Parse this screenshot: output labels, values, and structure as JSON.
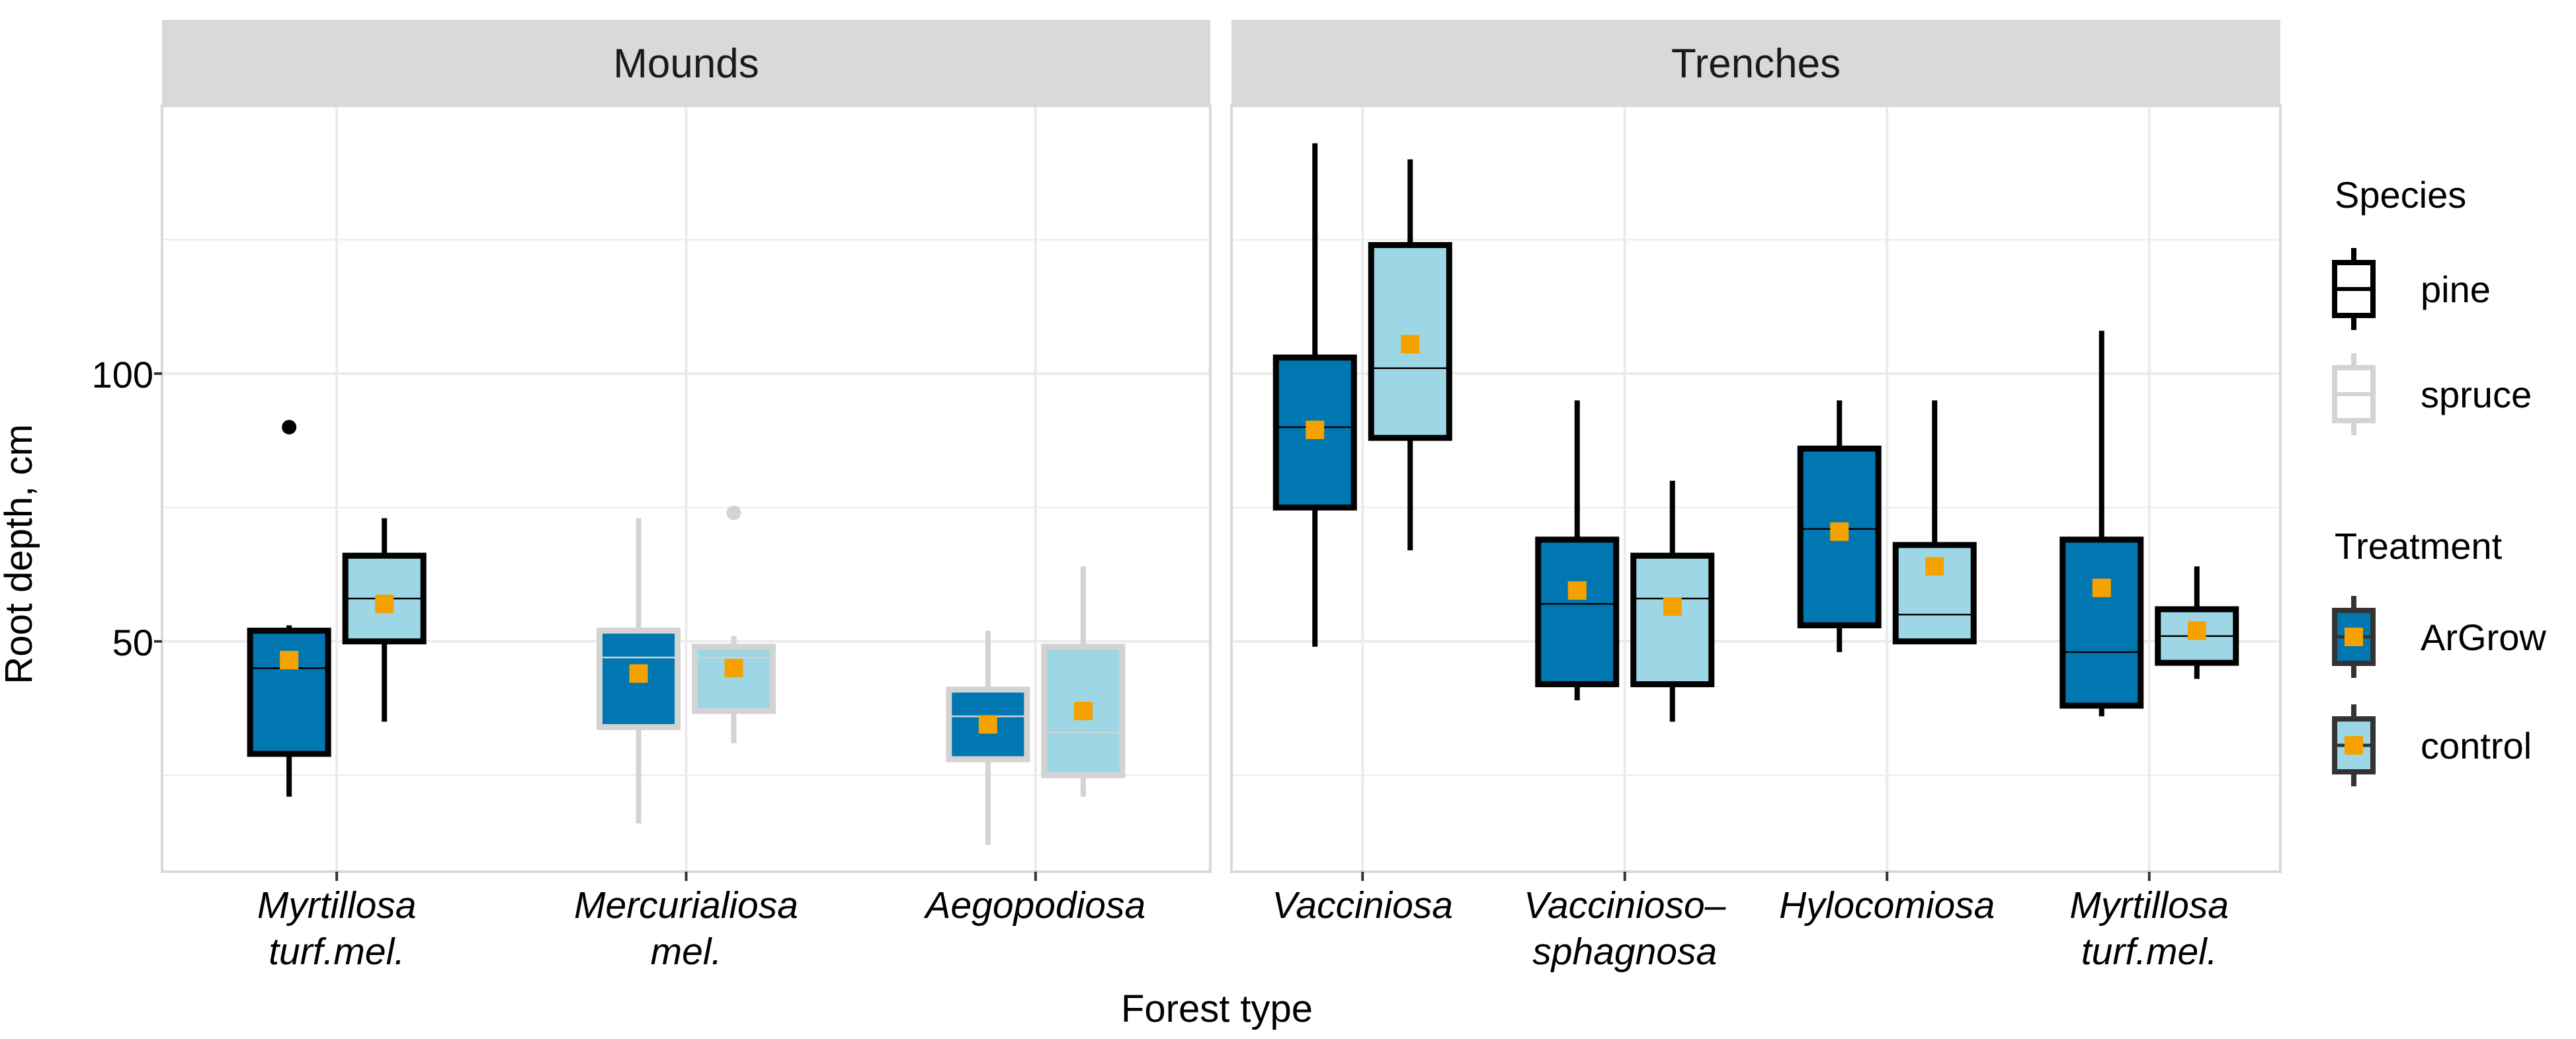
{
  "chart_data": {
    "type": "boxplot",
    "ylabel": "Root depth, cm",
    "xlabel": "Forest type",
    "y_range": [
      7,
      150
    ],
    "y_ticks": [
      50,
      100
    ],
    "colors": {
      "ArGrow": "#0077b0",
      "control": "#9dd7e6",
      "pine_outline": "#000000",
      "spruce_outline": "#d3d3d3",
      "mean_marker": "#f5a100",
      "strip_bg": "#d9d9d9",
      "grid": "#ebebeb",
      "panel_border": "#d9d9d9"
    },
    "legend": {
      "species_title": "Species",
      "species": [
        "pine",
        "spruce"
      ],
      "treatment_title": "Treatment",
      "treatments": [
        "ArGrow",
        "control"
      ]
    },
    "panels": [
      {
        "title": "Mounds",
        "groups": [
          {
            "label_lines": [
              "Myrtillosa",
              "turf.mel."
            ],
            "boxes": [
              {
                "treatment": "ArGrow",
                "species": "pine",
                "min": 21,
                "q1": 29,
                "median": 45,
                "q3": 52,
                "max": 53,
                "mean": 46.5,
                "outliers": [
                  90
                ]
              },
              {
                "treatment": "control",
                "species": "pine",
                "min": 35,
                "q1": 50,
                "median": 58,
                "q3": 66,
                "max": 73,
                "mean": 57,
                "outliers": []
              }
            ]
          },
          {
            "label_lines": [
              "Mercurialiosa",
              "mel."
            ],
            "boxes": [
              {
                "treatment": "ArGrow",
                "species": "spruce",
                "min": 16,
                "q1": 34,
                "median": 47,
                "q3": 52,
                "max": 73,
                "mean": 44,
                "outliers": []
              },
              {
                "treatment": "control",
                "species": "spruce",
                "min": 31,
                "q1": 37,
                "median": 47,
                "q3": 49,
                "max": 51,
                "mean": 45,
                "outliers": [
                  74
                ]
              }
            ]
          },
          {
            "label_lines": [
              "Aegopodiosa"
            ],
            "boxes": [
              {
                "treatment": "ArGrow",
                "species": "spruce",
                "min": 12,
                "q1": 28,
                "median": 36,
                "q3": 41,
                "max": 52,
                "mean": 34.5,
                "outliers": []
              },
              {
                "treatment": "control",
                "species": "spruce",
                "min": 21,
                "q1": 25,
                "median": 33,
                "q3": 49,
                "max": 64,
                "mean": 37,
                "outliers": []
              }
            ]
          }
        ]
      },
      {
        "title": "Trenches",
        "groups": [
          {
            "label_lines": [
              "Vacciniosa"
            ],
            "boxes": [
              {
                "treatment": "ArGrow",
                "species": "pine",
                "min": 49,
                "q1": 75,
                "median": 90,
                "q3": 103,
                "max": 143,
                "mean": 89.5,
                "outliers": []
              },
              {
                "treatment": "control",
                "species": "pine",
                "min": 67,
                "q1": 88,
                "median": 101,
                "q3": 124,
                "max": 140,
                "mean": 105.5,
                "outliers": []
              }
            ]
          },
          {
            "label_lines": [
              "Vaccinioso–",
              "sphagnosa"
            ],
            "boxes": [
              {
                "treatment": "ArGrow",
                "species": "pine",
                "min": 39,
                "q1": 42,
                "median": 57,
                "q3": 69,
                "max": 95,
                "mean": 59.5,
                "outliers": []
              },
              {
                "treatment": "control",
                "species": "pine",
                "min": 35,
                "q1": 42,
                "median": 58,
                "q3": 66,
                "max": 80,
                "mean": 56.5,
                "outliers": []
              }
            ]
          },
          {
            "label_lines": [
              "Hylocomiosa"
            ],
            "boxes": [
              {
                "treatment": "ArGrow",
                "species": "pine",
                "min": 48,
                "q1": 53,
                "median": 71,
                "q3": 86,
                "max": 95,
                "mean": 70.5,
                "outliers": []
              },
              {
                "treatment": "control",
                "species": "pine",
                "min": 50,
                "q1": 50,
                "median": 55,
                "q3": 68,
                "max": 95,
                "mean": 64,
                "outliers": []
              }
            ]
          },
          {
            "label_lines": [
              "Myrtillosa",
              "turf.mel."
            ],
            "boxes": [
              {
                "treatment": "ArGrow",
                "species": "pine",
                "min": 36,
                "q1": 38,
                "median": 48,
                "q3": 69,
                "max": 108,
                "mean": 60,
                "outliers": []
              },
              {
                "treatment": "control",
                "species": "pine",
                "min": 43,
                "q1": 46,
                "median": 51,
                "q3": 56,
                "max": 64,
                "mean": 52,
                "outliers": []
              }
            ]
          }
        ]
      }
    ]
  }
}
